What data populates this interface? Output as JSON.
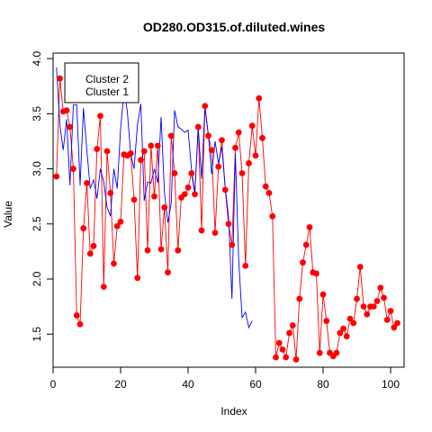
{
  "chart_data": {
    "type": "line",
    "title": "OD280.OD315.of.diluted.wines",
    "xlabel": "Index",
    "ylabel": "Value",
    "xlim": [
      0,
      104
    ],
    "ylim": [
      1.2,
      4.05
    ],
    "x_ticks": [
      0,
      20,
      40,
      60,
      80,
      100
    ],
    "y_ticks": [
      1.5,
      2.0,
      2.5,
      3.0,
      3.5,
      4.0
    ],
    "x_tick_labels": [
      "0",
      "20",
      "40",
      "60",
      "80",
      "100"
    ],
    "y_tick_labels": [
      "1.5",
      "2.0",
      "2.5",
      "3.0",
      "3.5",
      "4.0"
    ],
    "legend": {
      "position": "top-left",
      "entries": [
        "Cluster 2",
        "Cluster 1"
      ]
    },
    "series": [
      {
        "name": "Cluster 2",
        "color": "#ff0000",
        "style": "line+points",
        "x": [
          1,
          2,
          3,
          4,
          5,
          6,
          7,
          8,
          9,
          10,
          11,
          12,
          13,
          14,
          15,
          16,
          17,
          18,
          19,
          20,
          21,
          22,
          23,
          24,
          25,
          26,
          27,
          28,
          29,
          30,
          31,
          32,
          33,
          34,
          35,
          36,
          37,
          38,
          39,
          40,
          41,
          42,
          43,
          44,
          45,
          46,
          47,
          48,
          49,
          50,
          51,
          52,
          53,
          54,
          55,
          56,
          57,
          58,
          59,
          60,
          61,
          62,
          63,
          64,
          65,
          66,
          67,
          68,
          69,
          70,
          71,
          72,
          73,
          74,
          75,
          76,
          77,
          78,
          79,
          80,
          81,
          82,
          83,
          84,
          85,
          86,
          87,
          88,
          89,
          90,
          91,
          92,
          93,
          94,
          95,
          96,
          97,
          98,
          99,
          100,
          101,
          102
        ],
        "values": [
          2.93,
          3.82,
          3.52,
          3.53,
          3.38,
          3.0,
          1.67,
          1.59,
          2.46,
          2.87,
          2.23,
          2.3,
          3.18,
          3.48,
          1.93,
          3.16,
          2.78,
          2.14,
          2.48,
          2.52,
          3.13,
          3.12,
          3.14,
          2.72,
          2.01,
          3.08,
          3.16,
          2.26,
          3.21,
          2.75,
          3.21,
          2.27,
          2.65,
          2.06,
          3.3,
          2.96,
          2.26,
          2.74,
          2.77,
          2.83,
          2.96,
          2.77,
          3.38,
          2.44,
          3.57,
          3.3,
          3.17,
          2.42,
          3.02,
          3.26,
          2.81,
          2.5,
          2.31,
          3.19,
          3.33,
          2.96,
          2.12,
          3.05,
          3.39,
          3.12,
          3.64,
          3.28,
          2.84,
          2.78,
          2.57,
          1.29,
          1.42,
          1.36,
          1.29,
          1.51,
          1.58,
          1.27,
          1.82,
          2.15,
          2.31,
          2.47,
          2.06,
          2.05,
          1.33,
          1.86,
          1.62,
          1.33,
          1.3,
          1.33,
          1.51,
          1.55,
          1.48,
          1.64,
          1.6,
          1.82,
          2.11,
          1.75,
          1.68,
          1.75,
          1.75,
          1.8,
          1.92,
          1.83,
          1.63,
          1.71,
          1.56,
          1.6
        ]
      },
      {
        "name": "Cluster 1",
        "color": "#0000ff",
        "style": "line",
        "x": [
          1,
          2,
          3,
          4,
          5,
          6,
          7,
          8,
          9,
          10,
          11,
          12,
          13,
          14,
          15,
          16,
          17,
          18,
          19,
          20,
          21,
          22,
          23,
          24,
          25,
          26,
          27,
          28,
          29,
          30,
          31,
          32,
          33,
          34,
          35,
          36,
          37,
          38,
          39,
          40,
          41,
          42,
          43,
          44,
          45,
          46,
          47,
          48,
          49,
          50,
          51,
          52,
          53,
          54,
          55,
          56,
          57,
          58,
          59
        ],
        "values": [
          3.92,
          3.4,
          3.17,
          3.45,
          2.85,
          3.58,
          3.58,
          2.85,
          3.55,
          3.17,
          2.82,
          2.9,
          2.73,
          3.0,
          2.88,
          2.65,
          2.57,
          3.0,
          2.82,
          3.36,
          3.71,
          3.52,
          3.13,
          3.0,
          3.4,
          3.59,
          2.71,
          2.88,
          2.87,
          3.0,
          2.87,
          3.47,
          2.78,
          2.51,
          2.69,
          3.53,
          3.38,
          3.36,
          3.33,
          3.35,
          3.0,
          2.78,
          3.38,
          2.91,
          3.56,
          3.31,
          2.95,
          3.25,
          3.05,
          3.2,
          2.83,
          2.56,
          1.82,
          3.14,
          2.17,
          1.65,
          1.7,
          1.56,
          1.62
        ]
      }
    ]
  }
}
